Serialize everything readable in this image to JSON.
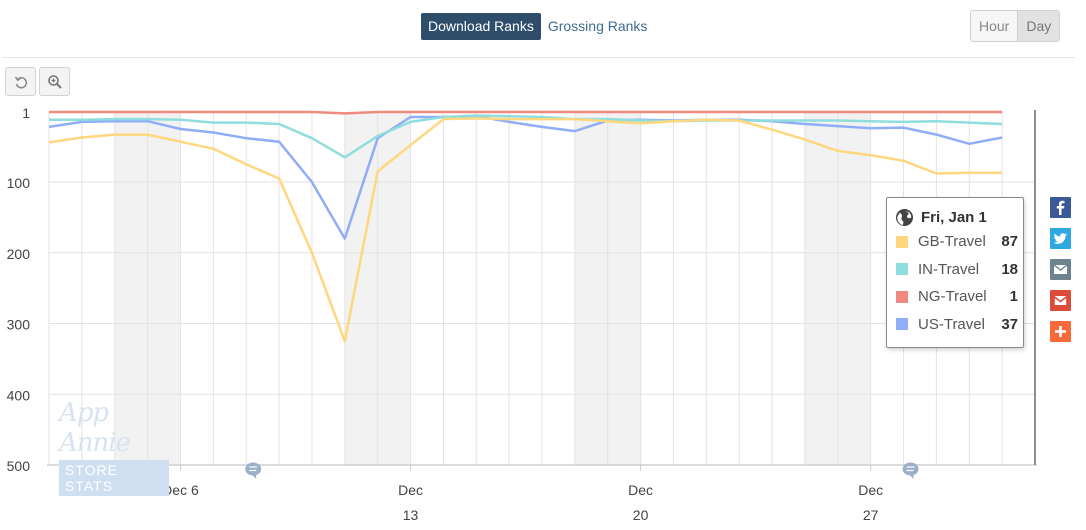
{
  "tabs": {
    "download_label": "Download Ranks",
    "grossing_label": "Grossing Ranks"
  },
  "range": {
    "hour_label": "Hour",
    "day_label": "Day",
    "selected": "Day"
  },
  "tools": {
    "reset_icon": "undo-icon",
    "zoom_icon": "zoom-in-icon"
  },
  "tooltip": {
    "date": "Fri, Jan 1",
    "icon": "globe-icon",
    "rows": [
      {
        "name": "GB-Travel",
        "value": "87",
        "color": "#ffd77f"
      },
      {
        "name": "IN-Travel",
        "value": "18",
        "color": "#90dddd"
      },
      {
        "name": "NG-Travel",
        "value": "1",
        "color": "#ee8a80"
      },
      {
        "name": "US-Travel",
        "value": "37",
        "color": "#90aef7"
      }
    ]
  },
  "share_icons": [
    {
      "name": "facebook-icon",
      "color": "#3b5998"
    },
    {
      "name": "twitter-icon",
      "color": "#2fa8e1"
    },
    {
      "name": "email-icon",
      "color": "#6d8490"
    },
    {
      "name": "gmail-icon",
      "color": "#dd4b39"
    },
    {
      "name": "plus-icon",
      "color": "#f96a3b"
    }
  ],
  "watermark": {
    "brand": "App Annie",
    "sub": "STORE STATS"
  },
  "chart_data": {
    "type": "line",
    "y_axis": {
      "reversed": true,
      "min": 1,
      "max": 500,
      "ticks": [
        1,
        100,
        200,
        300,
        400,
        500
      ]
    },
    "x_axis": {
      "start_date": "2015-12-02",
      "end_date": "2016-01-01",
      "tick_labels": [
        {
          "date": "2015-12-06",
          "line1": "Dec 6",
          "line2": ""
        },
        {
          "date": "2015-12-13",
          "line1": "Dec",
          "line2": "13"
        },
        {
          "date": "2015-12-20",
          "line1": "Dec",
          "line2": "20"
        },
        {
          "date": "2015-12-27",
          "line1": "Dec",
          "line2": "27"
        }
      ]
    },
    "weekend_bands": [
      [
        "2015-12-04",
        "2015-12-06"
      ],
      [
        "2015-12-11",
        "2015-12-13"
      ],
      [
        "2015-12-18",
        "2015-12-20"
      ],
      [
        "2015-12-25",
        "2015-12-27"
      ]
    ],
    "annotation_dates": [
      "2015-12-08",
      "2015-12-28"
    ],
    "crosshair_date": "2016-01-01",
    "grid": true,
    "legend": "tooltip",
    "series": [
      {
        "name": "US-Travel",
        "color": "#90aef7",
        "values": [
          22,
          15,
          14,
          14,
          25,
          30,
          38,
          43,
          100,
          180,
          38,
          8,
          8,
          7,
          15,
          22,
          28,
          13,
          12,
          13,
          12,
          12,
          14,
          18,
          21,
          24,
          23,
          33,
          46,
          37
        ]
      },
      {
        "name": "IN-Travel",
        "color": "#90dddd",
        "values": [
          12,
          12,
          11,
          11,
          12,
          16,
          16,
          18,
          38,
          65,
          35,
          15,
          8,
          6,
          7,
          8,
          11,
          11,
          13,
          14,
          13,
          13,
          13,
          13,
          13,
          14,
          15,
          14,
          16,
          18
        ]
      },
      {
        "name": "NG-Travel",
        "color": "#ee8a80",
        "values": [
          1,
          1,
          1,
          1,
          1,
          1,
          1,
          1,
          1,
          3,
          1,
          1,
          1,
          1,
          1,
          1,
          1,
          1,
          1,
          1,
          1,
          1,
          1,
          1,
          1,
          1,
          1,
          1,
          1,
          1
        ]
      },
      {
        "name": "GB-Travel",
        "color": "#ffd77f",
        "values": [
          44,
          37,
          33,
          33,
          43,
          53,
          75,
          95,
          200,
          325,
          85,
          48,
          11,
          10,
          11,
          11,
          11,
          14,
          17,
          14,
          12,
          13,
          26,
          40,
          56,
          62,
          70,
          88,
          87,
          87
        ]
      }
    ]
  }
}
